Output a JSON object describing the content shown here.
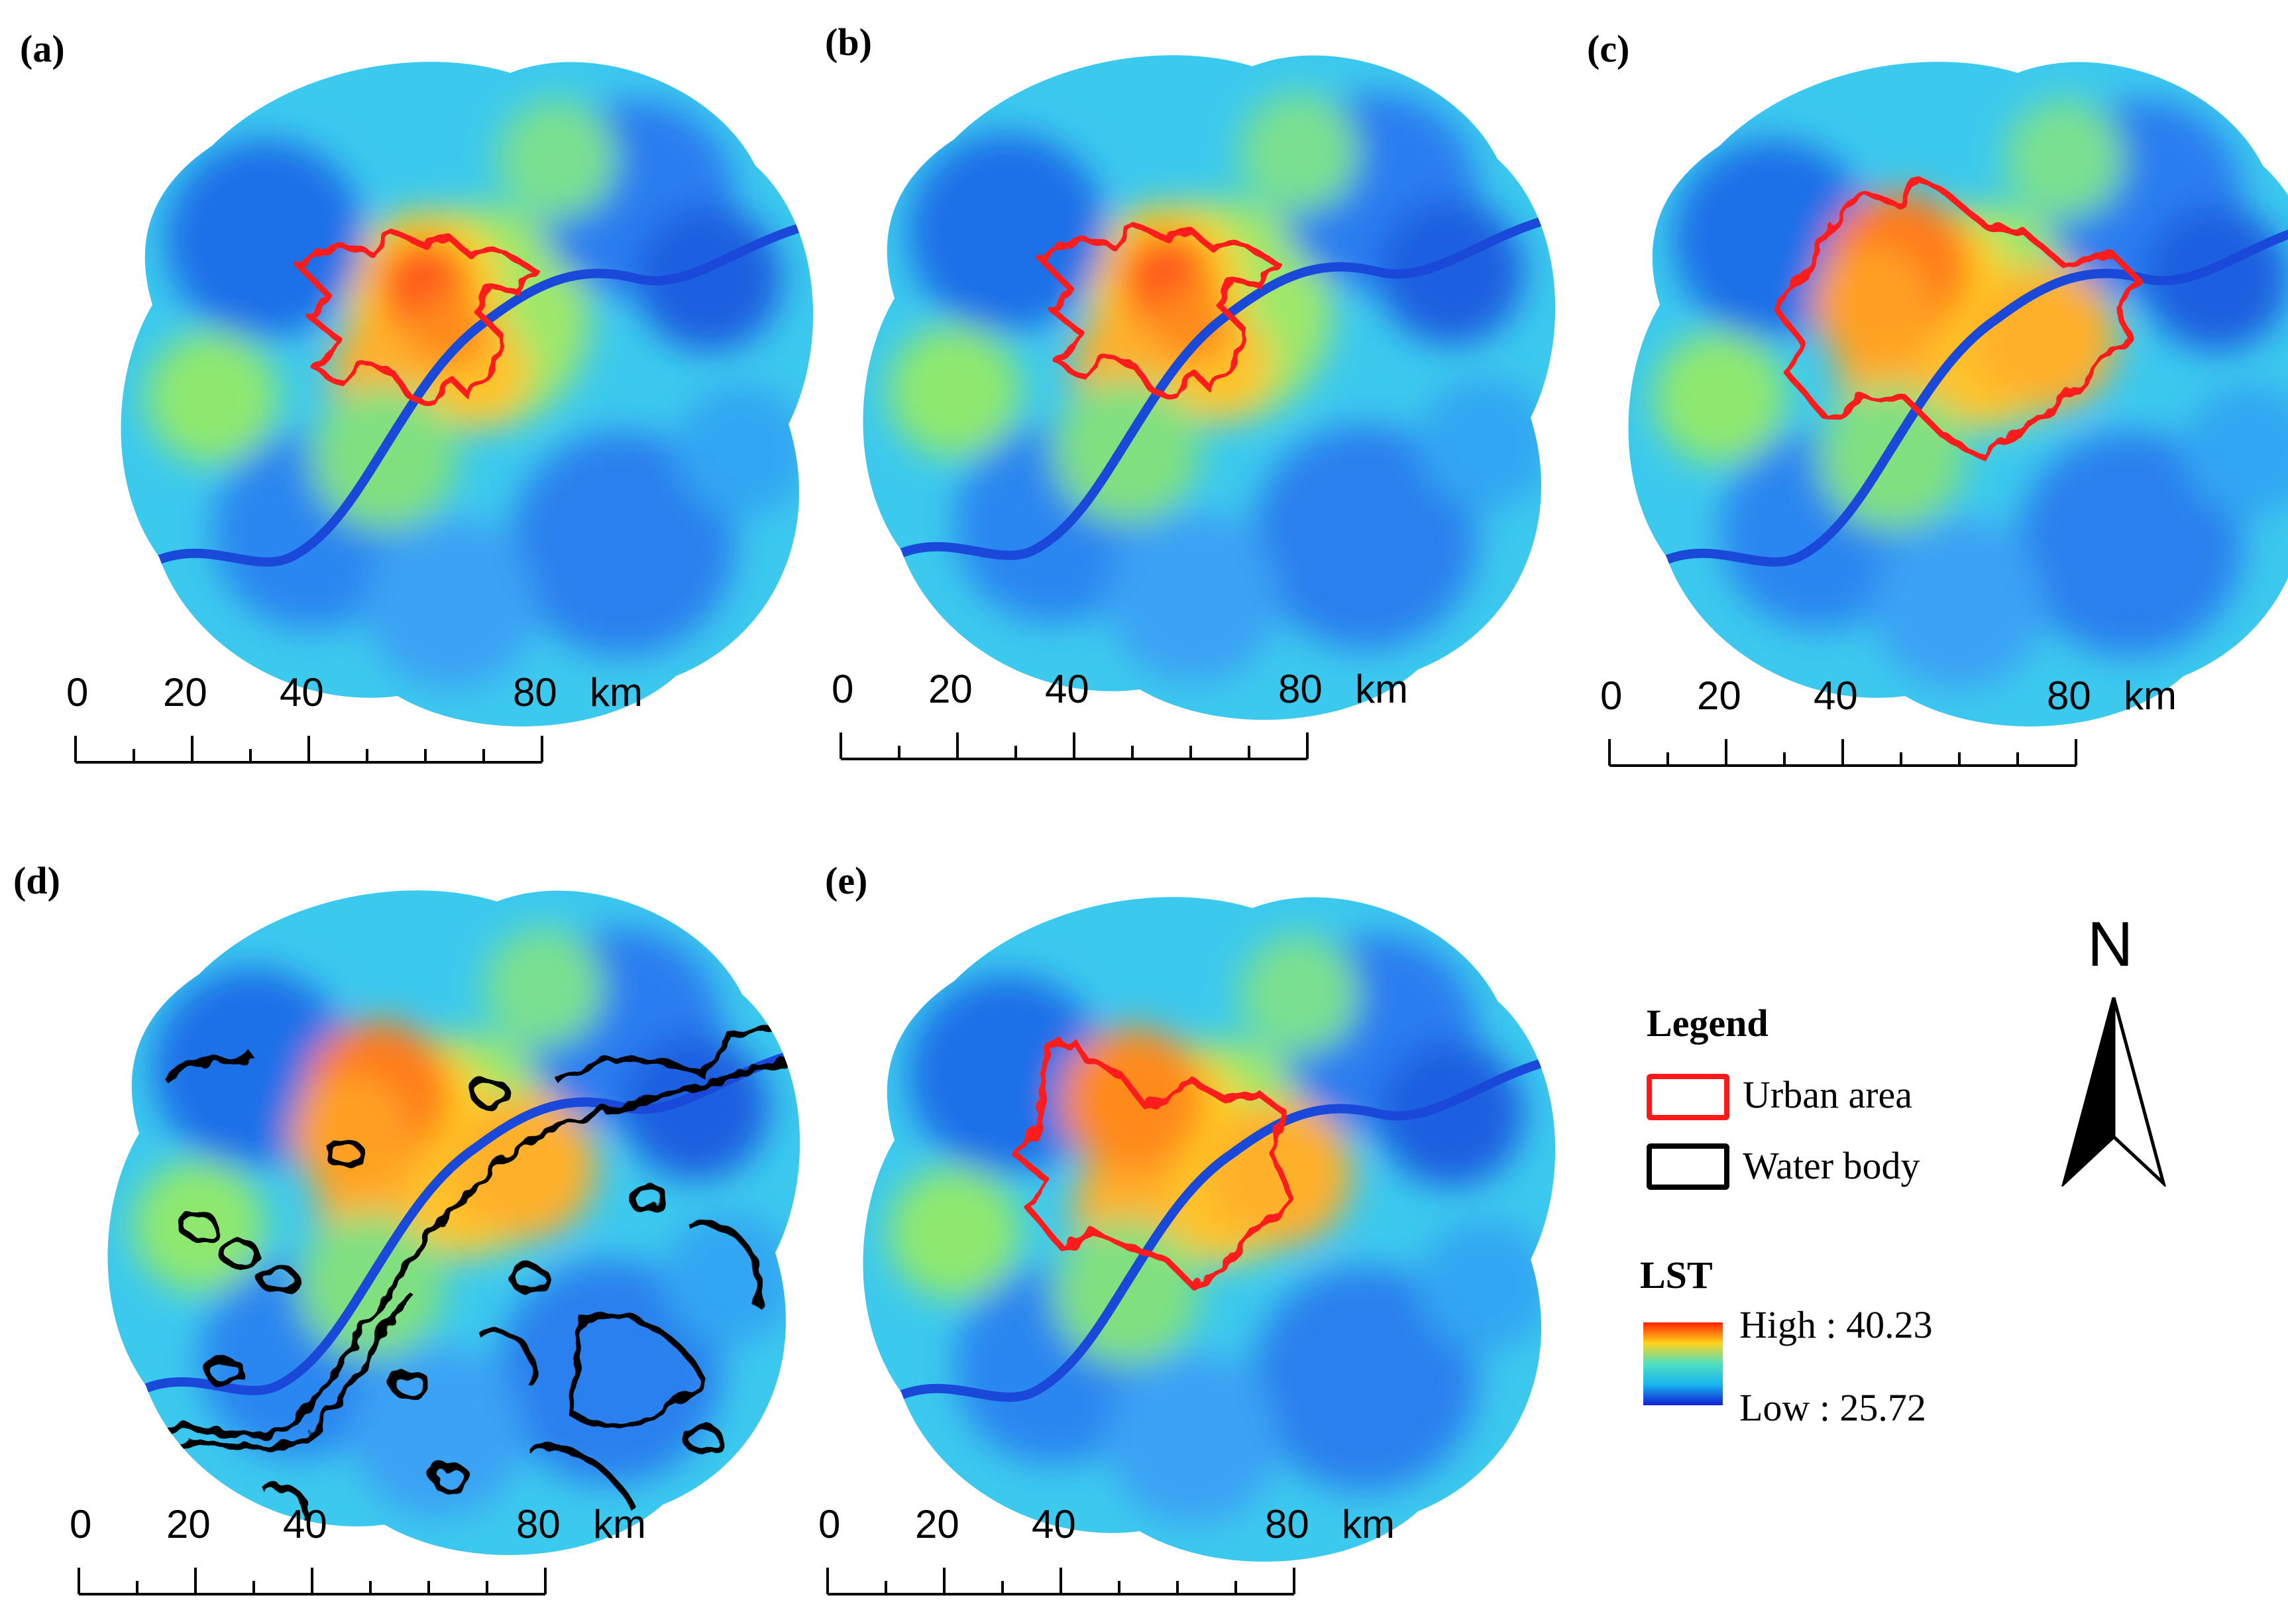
{
  "panels": [
    {
      "id": "a",
      "label": "(a)",
      "overlay": "urban-small"
    },
    {
      "id": "b",
      "label": "(b)",
      "overlay": "urban-small"
    },
    {
      "id": "c",
      "label": "(c)",
      "overlay": "urban-large"
    },
    {
      "id": "d",
      "label": "(d)",
      "overlay": "water"
    },
    {
      "id": "e",
      "label": "(e)",
      "overlay": "urban-medium"
    }
  ],
  "scale_bar": {
    "ticks": [
      "0",
      "20",
      "40",
      "80"
    ],
    "unit": "km"
  },
  "legend": {
    "title": "Legend",
    "urban_label": "Urban area",
    "water_label": "Water body",
    "lst_title": "LST",
    "high_label": "High : 40.23",
    "low_label": "Low : 25.72",
    "urban_color": "#ff1a1a",
    "water_color": "#000000"
  },
  "north_arrow": {
    "label": "N"
  },
  "colors": {
    "lst_high": "#ff2a00",
    "lst_mid_high": "#ffd21a",
    "lst_mid": "#3fe0d0",
    "lst_low": "#1432d8"
  }
}
